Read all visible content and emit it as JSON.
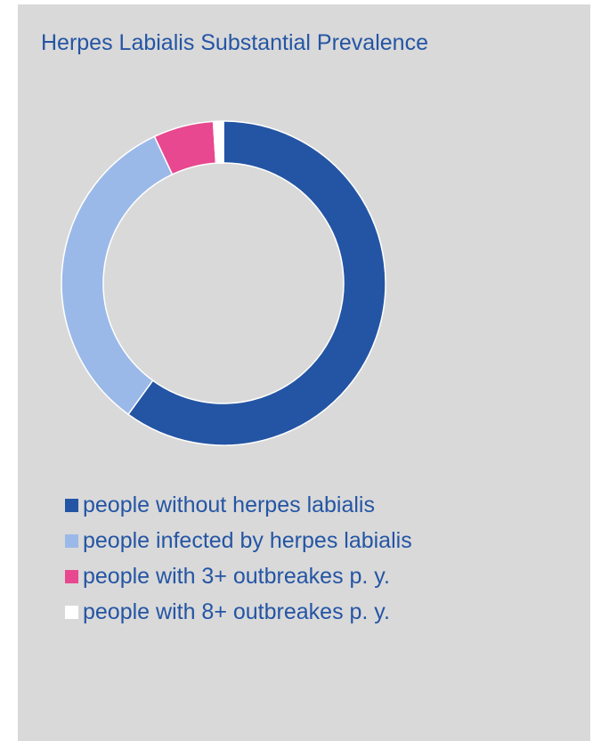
{
  "chart_data": {
    "type": "pie",
    "variant": "donut",
    "title": "Herpes Labialis Substantial Prevalence",
    "categories": [
      "people without herpes labialis",
      "people infected by herpes labialis",
      "people with 3+ outbreakes p. y.",
      "people with 8+ outbreakes p. y."
    ],
    "values": [
      60,
      33,
      6,
      1
    ],
    "colors": [
      "#2455a4",
      "#9bb9e8",
      "#e8488f",
      "#ffffff"
    ],
    "legend_position": "bottom",
    "start_angle_deg": 0,
    "direction": "clockwise"
  },
  "background_color": "#d9d9d9",
  "text_color": "#2455a4"
}
